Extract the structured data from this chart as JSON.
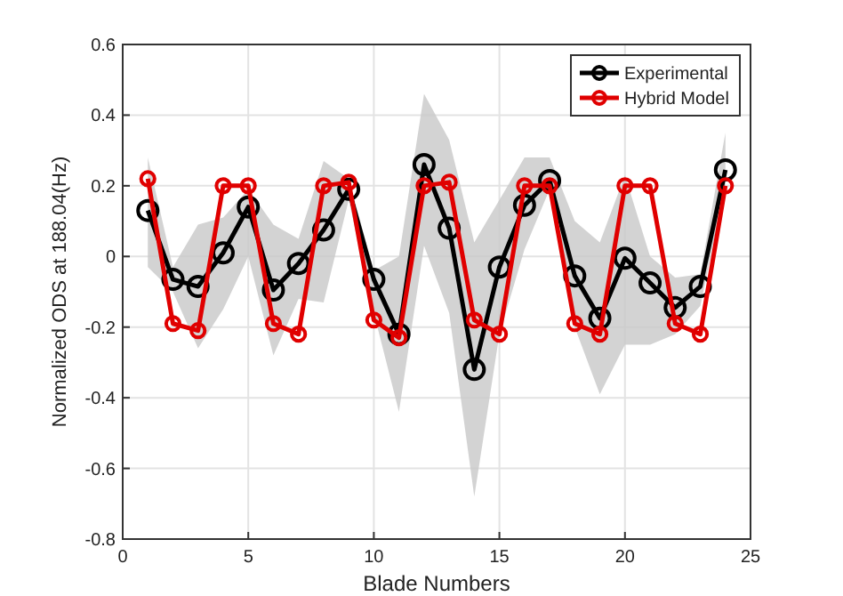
{
  "chart_data": {
    "type": "line",
    "xlabel": "Blade Numbers",
    "ylabel": "Normalized ODS at 188.04(Hz)",
    "x": [
      1,
      2,
      3,
      4,
      5,
      6,
      7,
      8,
      9,
      10,
      11,
      12,
      13,
      14,
      15,
      16,
      17,
      18,
      19,
      20,
      21,
      22,
      23,
      24
    ],
    "series": [
      {
        "name": "Experimental",
        "color": "#000000",
        "values": [
          0.13,
          -0.065,
          -0.085,
          0.01,
          0.14,
          -0.095,
          -0.02,
          0.075,
          0.19,
          -0.065,
          -0.22,
          0.26,
          0.08,
          -0.32,
          -0.03,
          0.145,
          0.215,
          -0.055,
          -0.175,
          -0.005,
          -0.075,
          -0.145,
          -0.085,
          0.245
        ],
        "lower": [
          -0.03,
          -0.1,
          -0.26,
          -0.15,
          0.0,
          -0.28,
          -0.12,
          -0.13,
          0.16,
          -0.16,
          -0.44,
          0.03,
          -0.16,
          -0.68,
          -0.22,
          0.02,
          0.19,
          -0.2,
          -0.39,
          -0.25,
          -0.25,
          -0.22,
          -0.14,
          0.2
        ],
        "upper": [
          0.28,
          -0.03,
          0.09,
          0.11,
          0.19,
          0.09,
          0.05,
          0.27,
          0.22,
          -0.04,
          0.0,
          0.46,
          0.33,
          0.04,
          0.16,
          0.28,
          0.28,
          0.1,
          0.04,
          0.23,
          0.0,
          -0.06,
          -0.05,
          0.35
        ]
      },
      {
        "name": "Hybrid Model",
        "color": "#e00000",
        "values": [
          0.22,
          -0.19,
          -0.21,
          0.2,
          0.2,
          -0.19,
          -0.22,
          0.2,
          0.21,
          -0.18,
          -0.23,
          0.2,
          0.21,
          -0.18,
          -0.22,
          0.2,
          0.2,
          -0.19,
          -0.22,
          0.2,
          0.2,
          -0.19,
          -0.22,
          0.2
        ]
      }
    ],
    "xlim": [
      0,
      25
    ],
    "xticks": [
      0,
      5,
      10,
      15,
      20,
      25
    ],
    "ylim": [
      -0.8,
      0.6
    ],
    "yticks": [
      -0.8,
      -0.6,
      -0.4,
      -0.2,
      0,
      0.2,
      0.4,
      0.6
    ],
    "grid": true,
    "legend": "top right",
    "marker": "circle",
    "line_style": "solid"
  }
}
